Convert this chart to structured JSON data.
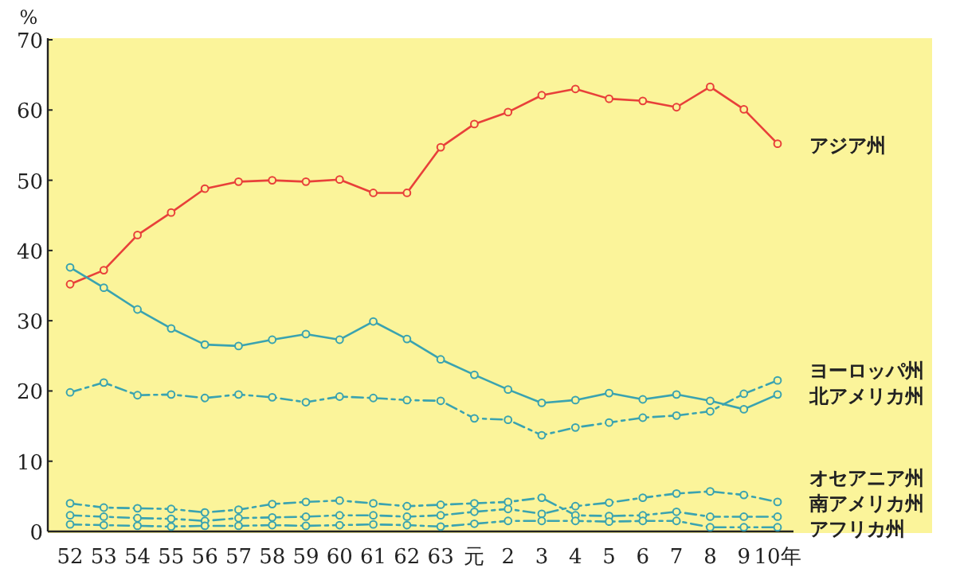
{
  "chart_data": {
    "type": "line",
    "ylabel": "%",
    "categories": [
      "52",
      "53",
      "54",
      "55",
      "56",
      "57",
      "58",
      "59",
      "60",
      "61",
      "62",
      "63",
      "元",
      "2",
      "3",
      "4",
      "5",
      "6",
      "7",
      "8",
      "9",
      "10年"
    ],
    "ylim": [
      0,
      70
    ],
    "yticks": [
      0,
      10,
      20,
      30,
      40,
      50,
      60,
      70
    ],
    "marker": "circle",
    "series": [
      {
        "name": "アジア州",
        "color": "#e8403a",
        "line_style": "solid",
        "values": [
          35.2,
          37.2,
          42.2,
          45.4,
          48.8,
          49.8,
          50.0,
          49.8,
          50.1,
          48.2,
          48.2,
          54.7,
          58.0,
          59.7,
          62.1,
          63.0,
          61.6,
          61.3,
          60.4,
          63.3,
          60.1,
          55.2
        ]
      },
      {
        "name": "ヨーロッパ州",
        "color": "#3aa3b0",
        "line_style": "dashed",
        "values": [
          19.8,
          21.2,
          19.4,
          19.5,
          19.0,
          19.5,
          19.1,
          18.4,
          19.2,
          19.0,
          18.7,
          18.6,
          16.1,
          15.9,
          13.7,
          14.8,
          15.5,
          16.2,
          16.5,
          17.1,
          19.6,
          21.5
        ]
      },
      {
        "name": "北アメリカ州",
        "color": "#3aa3b0",
        "line_style": "solid",
        "values": [
          37.6,
          34.7,
          31.6,
          28.9,
          26.6,
          26.4,
          27.3,
          28.1,
          27.3,
          29.9,
          27.4,
          24.5,
          22.3,
          20.2,
          18.3,
          18.7,
          19.7,
          18.8,
          19.5,
          18.6,
          17.4,
          19.5
        ]
      },
      {
        "name": "オセアニア州",
        "color": "#3aa3b0",
        "line_style": "dashed",
        "values": [
          2.3,
          2.1,
          1.9,
          1.8,
          1.5,
          1.9,
          2.0,
          2.1,
          2.3,
          2.3,
          2.1,
          2.3,
          2.8,
          3.2,
          2.5,
          3.6,
          4.1,
          4.8,
          5.4,
          5.7,
          5.2,
          4.2
        ]
      },
      {
        "name": "南アメリカ州",
        "color": "#3aa3b0",
        "line_style": "dashed",
        "values": [
          4.0,
          3.4,
          3.3,
          3.2,
          2.7,
          3.1,
          3.9,
          4.2,
          4.4,
          4.0,
          3.6,
          3.8,
          4.0,
          4.2,
          4.8,
          2.3,
          2.2,
          2.3,
          2.8,
          2.1,
          2.1,
          2.1
        ]
      },
      {
        "name": "アフリカ州",
        "color": "#3aa3b0",
        "line_style": "dashed",
        "values": [
          1.0,
          0.9,
          0.8,
          0.7,
          0.8,
          0.8,
          0.9,
          0.8,
          0.9,
          1.0,
          0.9,
          0.7,
          1.1,
          1.5,
          1.5,
          1.5,
          1.4,
          1.5,
          1.5,
          0.6,
          0.6,
          0.6
        ]
      }
    ]
  }
}
